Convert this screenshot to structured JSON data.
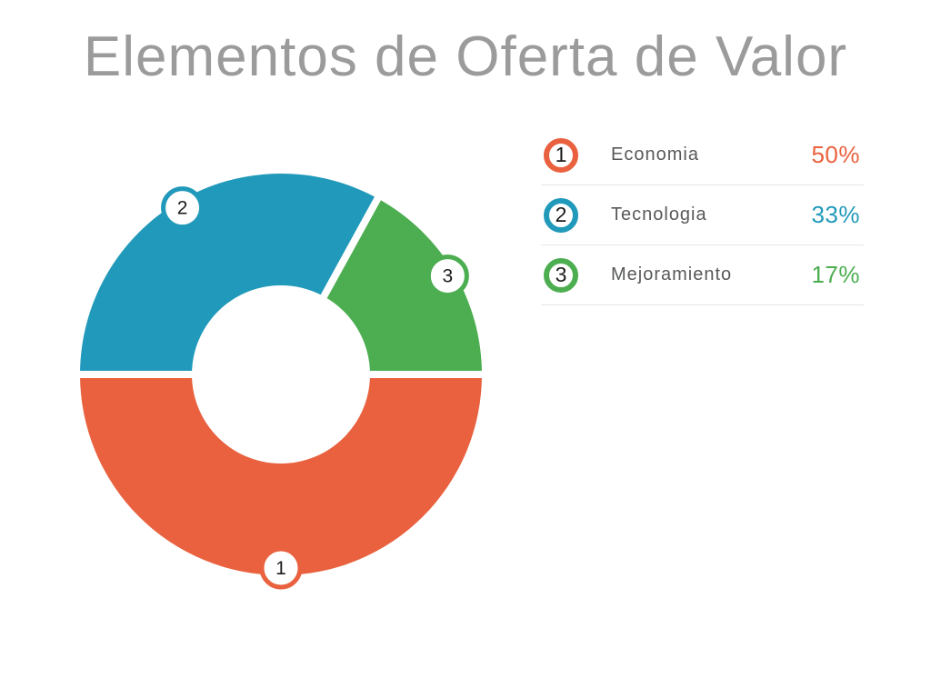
{
  "title": "Elementos de Oferta de Valor",
  "chart_data": {
    "type": "pie",
    "subtype": "donut",
    "title": "Elementos de Oferta de Valor",
    "categories": [
      "Economia",
      "Tecnologia",
      "Mejoramiento"
    ],
    "values": [
      50,
      33,
      17
    ],
    "unit": "%",
    "colors": [
      "#E9613E",
      "#2199BA",
      "#4CAE51"
    ],
    "markers": [
      "1",
      "2",
      "3"
    ],
    "start_angle_deg": 90,
    "direction": "clockwise",
    "legend_position": "right",
    "hole": true
  },
  "legend": {
    "items": [
      {
        "number": "1",
        "label": "Economia",
        "value": "50%",
        "color": "#E9613E"
      },
      {
        "number": "2",
        "label": "Tecnologia",
        "value": "33%",
        "color": "#2199BA"
      },
      {
        "number": "3",
        "label": "Mejoramiento",
        "value": "17%",
        "color": "#4CAE51"
      }
    ]
  }
}
